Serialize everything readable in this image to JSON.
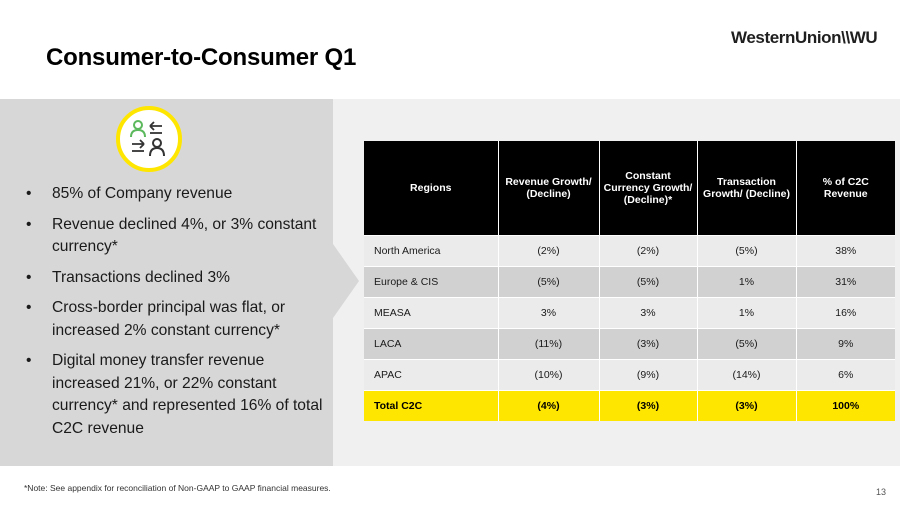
{
  "slide": {
    "title": "Consumer-to-Consumer Q1",
    "logo_text": "WesternUnion\\\\WU",
    "icon": "person-exchange-icon",
    "accent_color": "#ffe600",
    "bullets": [
      "85% of Company revenue",
      "Revenue declined 4%, or 3% constant currency*",
      "Transactions declined 3%",
      "Cross-border principal was flat, or increased 2% constant currency*",
      "Digital money transfer revenue increased 21%, or 22% constant currency* and represented 16% of total C2C revenue"
    ],
    "table": {
      "headers": [
        "Regions",
        "Revenue Growth/ (Decline)",
        "Constant Currency Growth/ (Decline)*",
        "Transaction Growth/ (Decline)",
        "% of C2C Revenue"
      ],
      "rows": [
        [
          "North America",
          "(2%)",
          "(2%)",
          "(5%)",
          "38%"
        ],
        [
          "Europe & CIS",
          "(5%)",
          "(5%)",
          "1%",
          "31%"
        ],
        [
          "MEASA",
          "3%",
          "3%",
          "1%",
          "16%"
        ],
        [
          "LACA",
          "(11%)",
          "(3%)",
          "(5%)",
          "9%"
        ],
        [
          "APAC",
          "(10%)",
          "(9%)",
          "(14%)",
          "6%"
        ]
      ],
      "total": [
        "Total C2C",
        "(4%)",
        "(3%)",
        "(3%)",
        "100%"
      ]
    },
    "footnote": "*Note: See appendix for reconciliation of Non-GAAP to GAAP financial measures.",
    "page_number": "13"
  }
}
